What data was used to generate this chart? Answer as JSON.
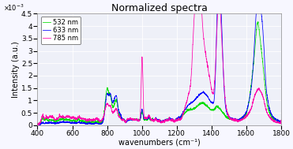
{
  "title": "Normalized spectra",
  "xlabel": "wavenumbers (cm⁻¹)",
  "ylabel": "Intensity (a.u.)",
  "xlim": [
    400,
    1800
  ],
  "ylim": [
    0,
    0.0045
  ],
  "legend_labels": [
    "532 nm",
    "633 nm",
    "785 nm"
  ],
  "legend_colors": [
    "#00dd00",
    "#0000ff",
    "#ff00aa"
  ],
  "bg_color": "#f7f7ff",
  "ax_bg_color": "#eef0f8",
  "title_fontsize": 9,
  "axis_fontsize": 7,
  "tick_fontsize": 6.5
}
